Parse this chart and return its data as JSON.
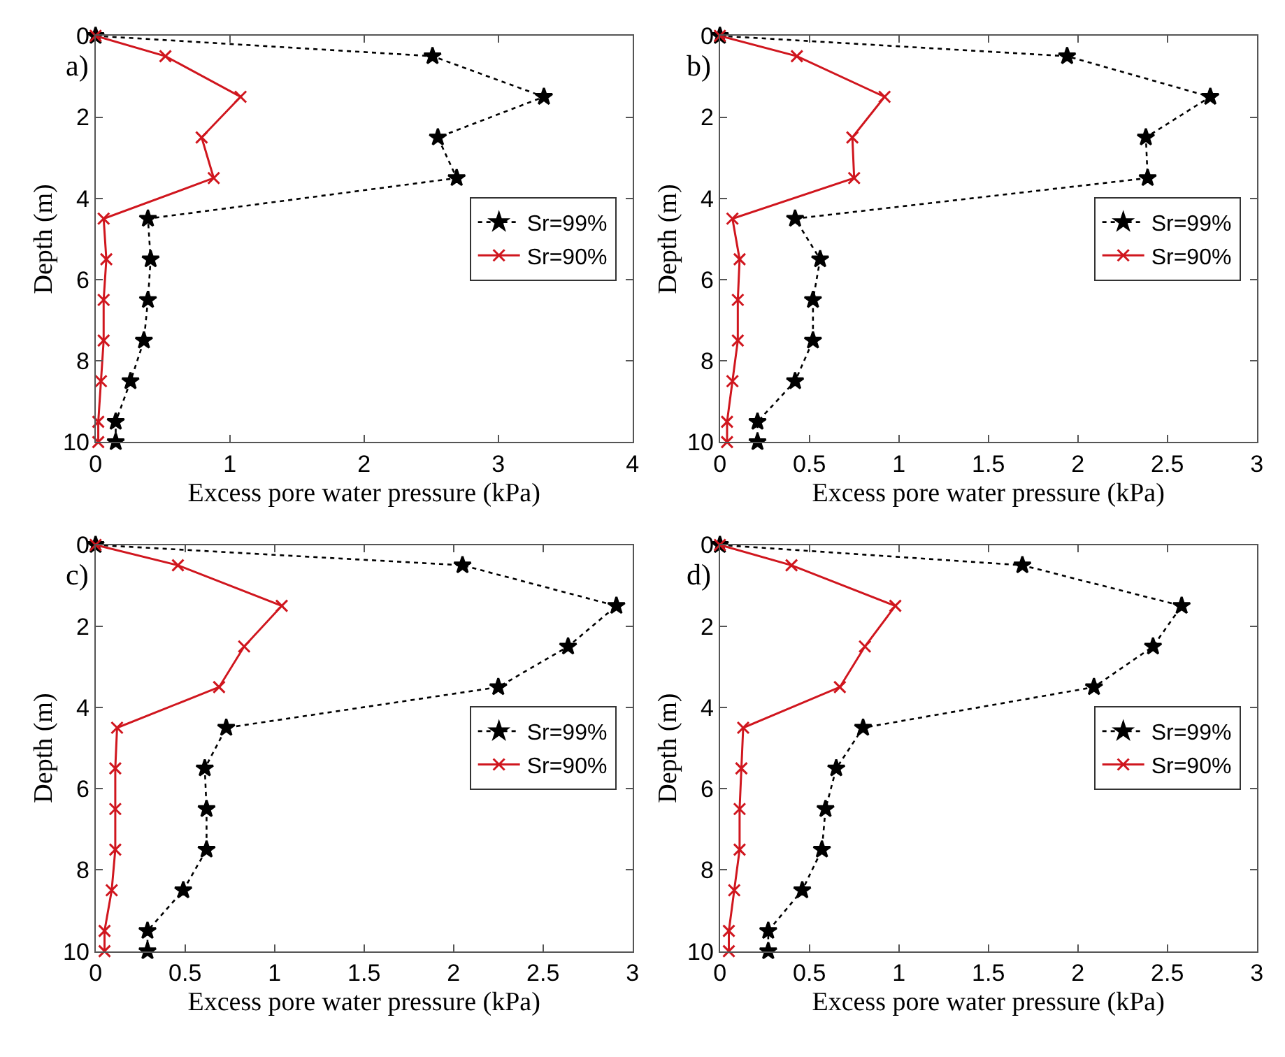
{
  "chart_data": [
    {
      "type": "line",
      "annotations": [
        "a)"
      ],
      "xlabel": "Excess pore water pressure (kPa)",
      "ylabel": "Depth (m)",
      "xlim": [
        0,
        4
      ],
      "xticks": [
        0,
        1,
        2,
        3,
        4
      ],
      "ylim": [
        10,
        0
      ],
      "yticks": [
        0,
        2,
        4,
        6,
        8,
        10
      ],
      "legend": "right",
      "series": [
        {
          "name": "Sr=99%",
          "color": "#000000",
          "marker": "star",
          "line_style": "dotted",
          "x": [
            0,
            2.51,
            3.34,
            2.55,
            2.69,
            0.39,
            0.41,
            0.39,
            0.36,
            0.26,
            0.15,
            0.15
          ],
          "values": [
            0,
            0.5,
            1.5,
            2.5,
            3.5,
            4.5,
            5.5,
            6.5,
            7.5,
            8.5,
            9.5,
            10
          ]
        },
        {
          "name": "Sr=90%",
          "color": "#d0161e",
          "marker": "cross",
          "line_style": "solid",
          "x": [
            0,
            0.52,
            1.08,
            0.79,
            0.88,
            0.06,
            0.08,
            0.06,
            0.06,
            0.04,
            0.02,
            0.02
          ],
          "values": [
            0,
            0.5,
            1.5,
            2.5,
            3.5,
            4.5,
            5.5,
            6.5,
            7.5,
            8.5,
            9.5,
            10
          ]
        }
      ]
    },
    {
      "type": "line",
      "annotations": [
        "b)"
      ],
      "xlabel": "Excess pore water pressure (kPa)",
      "ylabel": "Depth (m)",
      "xlim": [
        0,
        3
      ],
      "xticks": [
        0,
        0.5,
        1,
        1.5,
        2,
        2.5,
        3
      ],
      "ylim": [
        10,
        0
      ],
      "yticks": [
        0,
        2,
        4,
        6,
        8,
        10
      ],
      "legend": "right",
      "series": [
        {
          "name": "Sr=99%",
          "color": "#000000",
          "marker": "star",
          "line_style": "dotted",
          "x": [
            0,
            1.94,
            2.74,
            2.38,
            2.39,
            0.42,
            0.56,
            0.52,
            0.52,
            0.42,
            0.21,
            0.21
          ],
          "values": [
            0,
            0.5,
            1.5,
            2.5,
            3.5,
            4.5,
            5.5,
            6.5,
            7.5,
            8.5,
            9.5,
            10
          ]
        },
        {
          "name": "Sr=90%",
          "color": "#d0161e",
          "marker": "cross",
          "line_style": "solid",
          "x": [
            0,
            0.43,
            0.92,
            0.74,
            0.75,
            0.07,
            0.11,
            0.1,
            0.1,
            0.07,
            0.04,
            0.04
          ],
          "values": [
            0,
            0.5,
            1.5,
            2.5,
            3.5,
            4.5,
            5.5,
            6.5,
            7.5,
            8.5,
            9.5,
            10
          ]
        }
      ]
    },
    {
      "type": "line",
      "annotations": [
        "c)"
      ],
      "xlabel": "Excess pore water pressure (kPa)",
      "ylabel": "Depth (m)",
      "xlim": [
        0,
        3
      ],
      "xticks": [
        0,
        0.5,
        1,
        1.5,
        2,
        2.5,
        3
      ],
      "ylim": [
        10,
        0
      ],
      "yticks": [
        0,
        2,
        4,
        6,
        8,
        10
      ],
      "legend": "right",
      "series": [
        {
          "name": "Sr=99%",
          "color": "#000000",
          "marker": "star",
          "line_style": "dotted",
          "x": [
            0,
            2.05,
            2.91,
            2.64,
            2.25,
            0.73,
            0.61,
            0.62,
            0.62,
            0.49,
            0.29,
            0.29
          ],
          "values": [
            0,
            0.5,
            1.5,
            2.5,
            3.5,
            4.5,
            5.5,
            6.5,
            7.5,
            8.5,
            9.5,
            10
          ]
        },
        {
          "name": "Sr=90%",
          "color": "#d0161e",
          "marker": "cross",
          "line_style": "solid",
          "x": [
            0,
            0.46,
            1.04,
            0.83,
            0.69,
            0.12,
            0.11,
            0.11,
            0.11,
            0.09,
            0.05,
            0.05
          ],
          "values": [
            0,
            0.5,
            1.5,
            2.5,
            3.5,
            4.5,
            5.5,
            6.5,
            7.5,
            8.5,
            9.5,
            10
          ]
        }
      ]
    },
    {
      "type": "line",
      "annotations": [
        "d)"
      ],
      "xlabel": "Excess pore water pressure (kPa)",
      "ylabel": "Depth (m)",
      "xlim": [
        0,
        3
      ],
      "xticks": [
        0,
        0.5,
        1,
        1.5,
        2,
        2.5,
        3
      ],
      "ylim": [
        10,
        0
      ],
      "yticks": [
        0,
        2,
        4,
        6,
        8,
        10
      ],
      "legend": "right",
      "series": [
        {
          "name": "Sr=99%",
          "color": "#000000",
          "marker": "star",
          "line_style": "dotted",
          "x": [
            0,
            1.69,
            2.58,
            2.42,
            2.09,
            0.8,
            0.65,
            0.59,
            0.57,
            0.46,
            0.27,
            0.27
          ],
          "values": [
            0,
            0.5,
            1.5,
            2.5,
            3.5,
            4.5,
            5.5,
            6.5,
            7.5,
            8.5,
            9.5,
            10
          ]
        },
        {
          "name": "Sr=90%",
          "color": "#d0161e",
          "marker": "cross",
          "line_style": "solid",
          "x": [
            0,
            0.4,
            0.98,
            0.81,
            0.67,
            0.13,
            0.12,
            0.11,
            0.11,
            0.08,
            0.05,
            0.05
          ],
          "values": [
            0,
            0.5,
            1.5,
            2.5,
            3.5,
            4.5,
            5.5,
            6.5,
            7.5,
            8.5,
            9.5,
            10
          ]
        }
      ]
    }
  ]
}
